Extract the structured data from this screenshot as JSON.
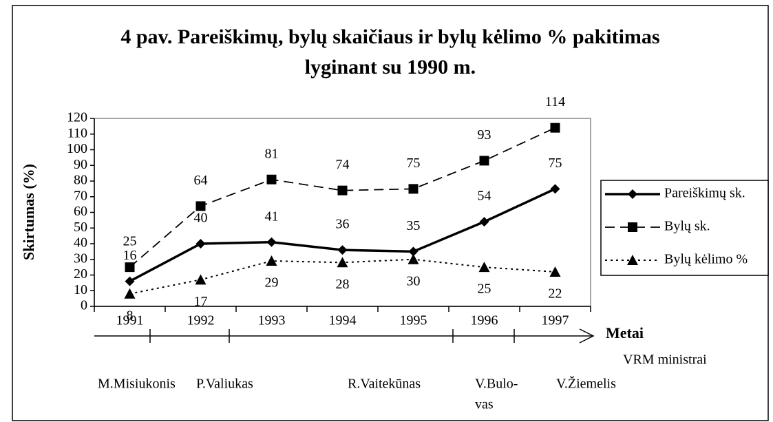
{
  "chart_data": {
    "type": "line",
    "title_lines": [
      "4 pav. Pareiškimų, bylų skaičiaus ir bylų kėlimo % pakitimas",
      "lyginant su 1990 m."
    ],
    "y_label": "Skirtumas (%)",
    "x_label": "Metai",
    "categories": [
      "1991",
      "1992",
      "1993",
      "1994",
      "1995",
      "1996",
      "1997"
    ],
    "series": [
      {
        "name": "Pareiškimų sk.",
        "color": "#000000",
        "line_style": "solid",
        "marker": "diamond",
        "label_position": "above",
        "values": [
          16,
          40,
          41,
          36,
          35,
          54,
          75
        ]
      },
      {
        "name": "Bylų sk.",
        "color": "#000000",
        "line_style": "dashed",
        "marker": "square",
        "label_position": "above",
        "values": [
          25,
          64,
          81,
          74,
          75,
          93,
          114
        ]
      },
      {
        "name": "Bylų kėlimo %",
        "color": "#000000",
        "line_style": "dotted",
        "marker": "triangle",
        "label_position": "below",
        "values": [
          8,
          17,
          29,
          28,
          30,
          25,
          22
        ]
      }
    ],
    "ylim": [
      0,
      120
    ],
    "yticks": [
      0,
      10,
      20,
      30,
      40,
      50,
      60,
      70,
      80,
      90,
      100,
      110,
      120
    ],
    "grid": false,
    "legend": "right",
    "timeline_label": "VRM ministrai",
    "ministers": [
      {
        "lines": [
          "M.Misiukonis"
        ]
      },
      {
        "lines": [
          "P.Valiukas"
        ]
      },
      {
        "lines": [
          "R.Vaitekūnas"
        ]
      },
      {
        "lines": [
          "V.Bulo-",
          "vas"
        ]
      },
      {
        "lines": [
          "V.Žiemelis"
        ]
      }
    ]
  }
}
